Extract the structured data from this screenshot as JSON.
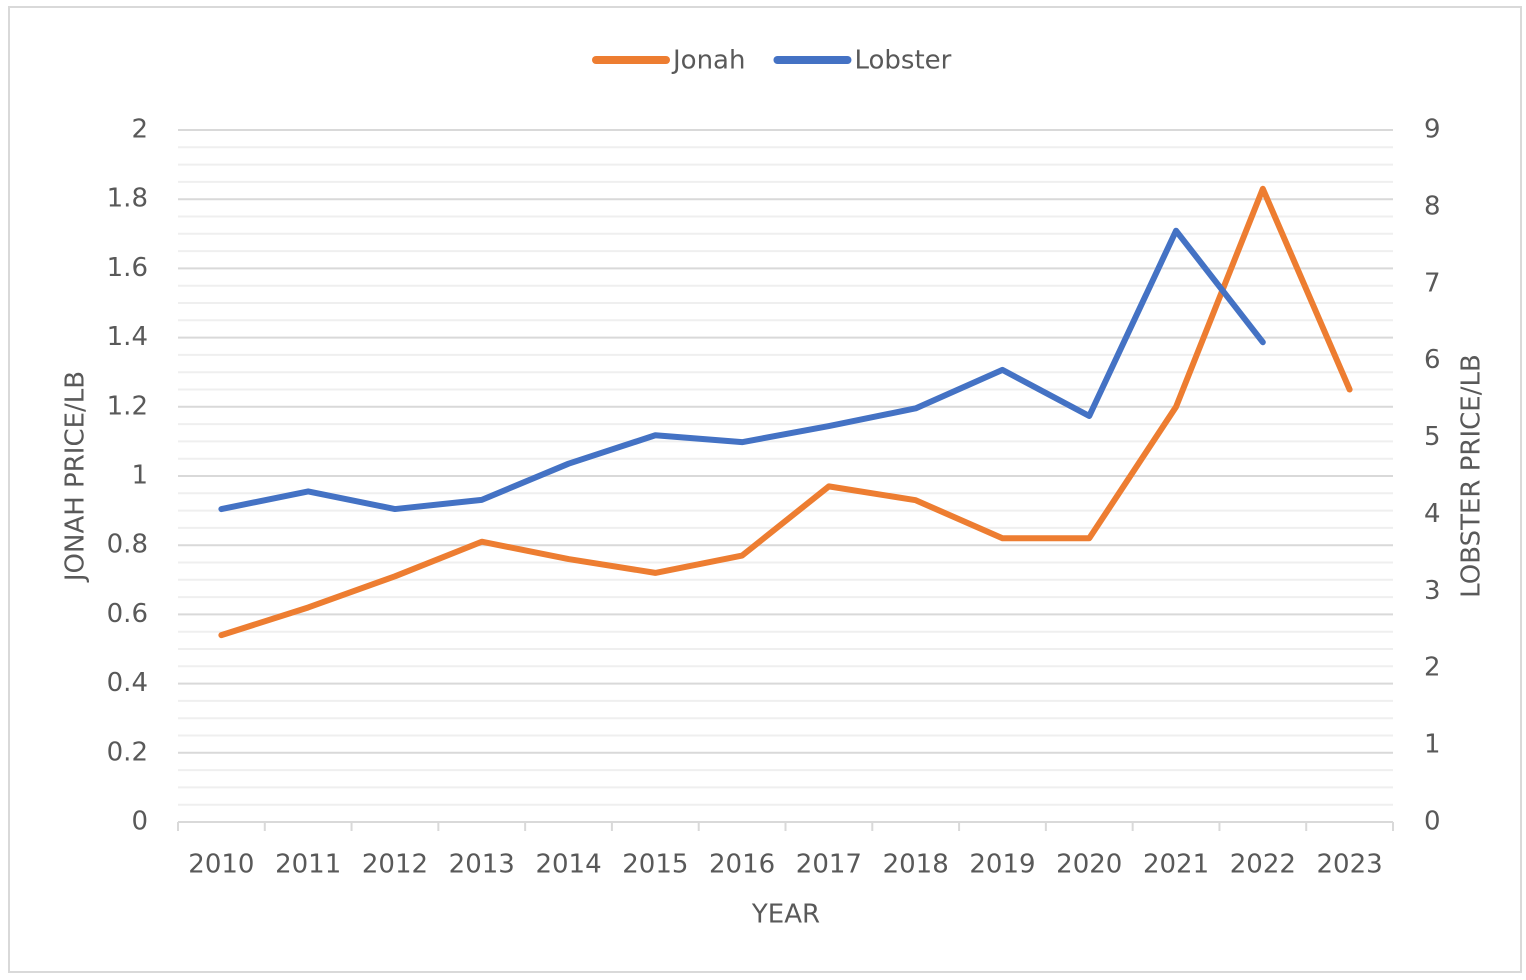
{
  "chart_data": {
    "type": "line",
    "x_label": "YEAR",
    "y_label": "JONAH PRICE/LB",
    "y2_label": "LOBSTER PRICE/LB",
    "categories": [
      "2010",
      "2011",
      "2012",
      "2013",
      "2014",
      "2015",
      "2016",
      "2017",
      "2018",
      "2019",
      "2020",
      "2021",
      "2022",
      "2023"
    ],
    "series": [
      {
        "name": "Jonah",
        "color": "#ed7d31",
        "values": [
          0.54,
          0.62,
          0.71,
          0.81,
          0.76,
          0.72,
          0.77,
          0.97,
          0.93,
          0.82,
          0.82,
          1.2,
          1.83,
          1.25
        ]
      },
      {
        "name": "Lobster",
        "color": "#4472c4",
        "axis": "y2",
        "values": [
          4.07,
          4.3,
          4.07,
          4.19,
          4.66,
          5.03,
          4.94,
          5.15,
          5.38,
          5.88,
          5.28,
          7.69,
          6.24,
          null
        ]
      }
    ],
    "ylim": [
      0,
      2
    ],
    "yticks": [
      0,
      0.2,
      0.4,
      0.6,
      0.8,
      {
        "value": 1,
        "label": "1"
      },
      1.2,
      1.4,
      1.6,
      1.8,
      2
    ],
    "y2lim": [
      0,
      9
    ],
    "y2ticks": [
      0,
      1,
      2,
      3,
      4,
      5,
      6,
      7,
      8,
      9
    ],
    "grid": true,
    "minor_grid": true,
    "legend": "top"
  }
}
